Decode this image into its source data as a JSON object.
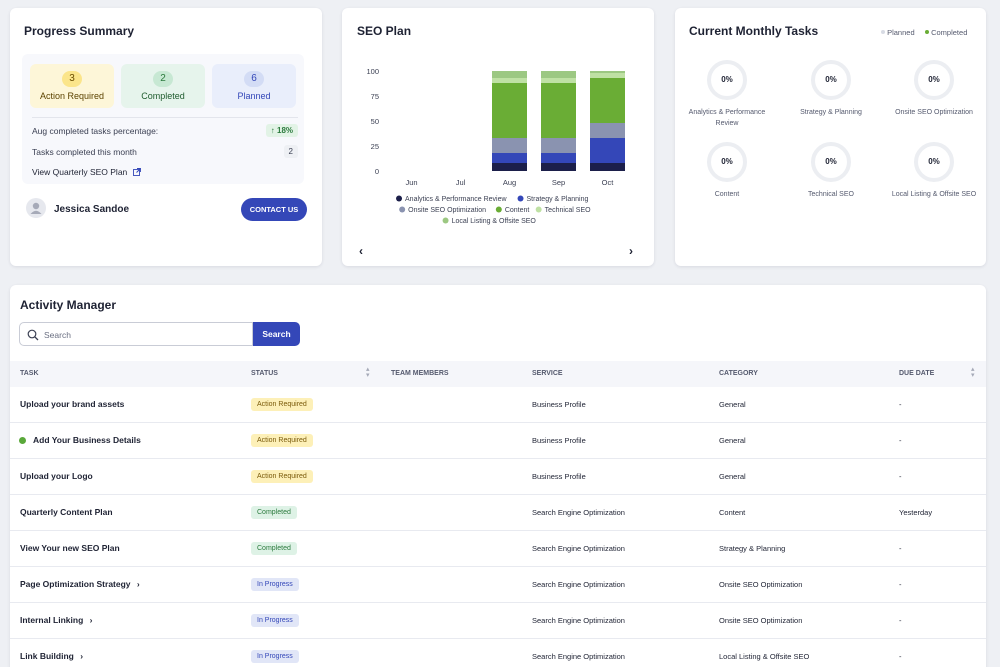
{
  "progress_summary": {
    "title": "Progress Summary",
    "stats": [
      {
        "count": "3",
        "label": "Action Required"
      },
      {
        "count": "2",
        "label": "Completed"
      },
      {
        "count": "6",
        "label": "Planned"
      }
    ],
    "aug_label": "Aug completed tasks percentage:",
    "aug_value": "↑ 18%",
    "month_label": "Tasks completed this month",
    "month_value": "2",
    "quarterly_link": "View Quarterly SEO Plan",
    "user_name": "Jessica Sandoe",
    "contact_label": "CONTACT US"
  },
  "seo_plan": {
    "title": "SEO Plan",
    "prev_icon": "chevron-left",
    "next_icon": "chevron-right"
  },
  "chart_data": {
    "type": "bar",
    "stacked": true,
    "title": "SEO Plan",
    "categories": [
      "Jun",
      "Jul",
      "Aug",
      "Sep",
      "Oct"
    ],
    "ylim": [
      0,
      100
    ],
    "yticks": [
      0,
      25,
      50,
      75,
      100
    ],
    "grid": false,
    "legend_position": "bottom",
    "series": [
      {
        "name": "Analytics & Performance Review",
        "color": "#1c1f4a",
        "values": [
          0,
          0,
          8,
          8,
          8
        ]
      },
      {
        "name": "Strategy & Planning",
        "color": "#3447b8",
        "values": [
          0,
          0,
          10,
          10,
          25
        ]
      },
      {
        "name": "Onsite SEO Optimization",
        "color": "#8a93b0",
        "values": [
          0,
          0,
          15,
          15,
          15
        ]
      },
      {
        "name": "Content",
        "color": "#6aad35",
        "values": [
          0,
          0,
          55,
          55,
          45
        ]
      },
      {
        "name": "Technical SEO",
        "color": "#bfe1a4",
        "values": [
          0,
          0,
          5,
          5,
          5
        ]
      },
      {
        "name": "Local Listing & Offsite SEO",
        "color": "#9cc882",
        "values": [
          0,
          0,
          7,
          7,
          2
        ]
      }
    ]
  },
  "monthly_tasks": {
    "title": "Current Monthly Tasks",
    "legend": [
      {
        "label": "Planned",
        "color": "#d8dbe4"
      },
      {
        "label": "Completed",
        "color": "#6aad35"
      }
    ],
    "items": [
      {
        "value": "0%",
        "label": "Analytics & Performance Review"
      },
      {
        "value": "0%",
        "label": "Strategy & Planning"
      },
      {
        "value": "0%",
        "label": "Onsite SEO Optimization"
      },
      {
        "value": "0%",
        "label": "Content"
      },
      {
        "value": "0%",
        "label": "Technical SEO"
      },
      {
        "value": "0%",
        "label": "Local Listing & Offsite SEO"
      }
    ]
  },
  "activity_manager": {
    "title": "Activity Manager",
    "search_placeholder": "Search",
    "search_button": "Search",
    "columns": [
      "TASK",
      "STATUS",
      "TEAM MEMBERS",
      "SERVICE",
      "CATEGORY",
      "DUE DATE"
    ],
    "rows": [
      {
        "task": "Upload your brand assets",
        "status": "Action Required",
        "service": "Business Profile",
        "category": "General",
        "due": "-"
      },
      {
        "task": "Add Your Business Details",
        "status": "Action Required",
        "service": "Business Profile",
        "category": "General",
        "due": "-"
      },
      {
        "task": "Upload your Logo",
        "status": "Action Required",
        "service": "Business Profile",
        "category": "General",
        "due": "-"
      },
      {
        "task": "Quarterly Content Plan",
        "status": "Completed",
        "service": "Search Engine Optimization",
        "category": "Content",
        "due": "Yesterday"
      },
      {
        "task": "View Your new SEO Plan",
        "status": "Completed",
        "service": "Search Engine Optimization",
        "category": "Strategy & Planning",
        "due": "-"
      },
      {
        "task": "Page Optimization Strategy",
        "status": "In Progress",
        "service": "Search Engine Optimization",
        "category": "Onsite SEO Optimization",
        "due": "-"
      },
      {
        "task": "Internal Linking",
        "status": "In Progress",
        "service": "Search Engine Optimization",
        "category": "Onsite SEO Optimization",
        "due": "-"
      },
      {
        "task": "Link Building",
        "status": "In Progress",
        "service": "Search Engine Optimization",
        "category": "Local Listing & Offsite SEO",
        "due": "-"
      }
    ]
  }
}
